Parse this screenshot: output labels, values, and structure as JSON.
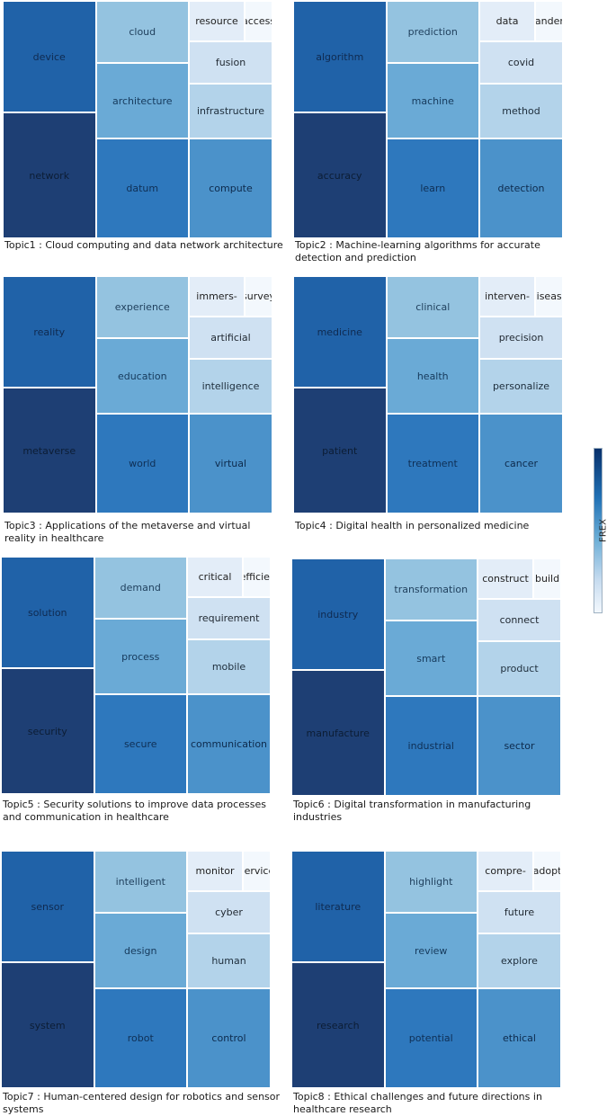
{
  "colorbar": {
    "label": "FREX",
    "colors": [
      "#08306b",
      "#2171b5",
      "#6baed6",
      "#c6dbef",
      "#f3f8fd"
    ]
  },
  "chart_data": [
    {
      "type": "treemap",
      "topic": "Topic1",
      "caption": "Topic1 : Cloud computing and data network architecture",
      "terms": [
        "network",
        "device",
        "datum",
        "compute",
        "architecture",
        "cloud",
        "infrastructure",
        "fusion",
        "resource",
        "access"
      ]
    },
    {
      "type": "treemap",
      "topic": "Topic2",
      "caption": "Topic2 : Machine-learning algorithms for accurate detection and prediction",
      "terms": [
        "accuracy",
        "algorithm",
        "learn",
        "detection",
        "machine",
        "prediction",
        "method",
        "covid",
        "data",
        "pandem"
      ]
    },
    {
      "type": "treemap",
      "topic": "Topic3",
      "caption": "Topic3 : Applications of the metaverse and virtual reality in healthcare",
      "terms": [
        "metaverse",
        "reality",
        "world",
        "virtual",
        "education",
        "experience",
        "intelligence",
        "artificial",
        "immers-",
        "survey"
      ]
    },
    {
      "type": "treemap",
      "topic": "Topic4",
      "caption": "Topic4 : Digital health in personalized medicine",
      "terms": [
        "patient",
        "medicine",
        "treatment",
        "cancer",
        "health",
        "clinical",
        "personalize",
        "precision",
        "interven-",
        "disease"
      ]
    },
    {
      "type": "treemap",
      "topic": "Topic5",
      "caption": "Topic5 : Security solutions to improve data processes and communication in healthcare",
      "terms": [
        "security",
        "solution",
        "secure",
        "communication",
        "process",
        "demand",
        "mobile",
        "requirement",
        "critical",
        "efficier"
      ]
    },
    {
      "type": "treemap",
      "topic": "Topic6",
      "caption": "Topic6 : Digital transformation in manufacturing industries",
      "terms": [
        "manufacture",
        "industry",
        "industrial",
        "sector",
        "smart",
        "transformation",
        "product",
        "connect",
        "construct",
        "build"
      ]
    },
    {
      "type": "treemap",
      "topic": "Topic7",
      "caption": "Topic7 : Human-centered design for robotics and sensor systems",
      "terms": [
        "system",
        "sensor",
        "robot",
        "control",
        "design",
        "intelligent",
        "human",
        "cyber",
        "monitor",
        "service"
      ]
    },
    {
      "type": "treemap",
      "topic": "Topic8",
      "caption": "Topic8 : Ethical challenges and future directions in healthcare research",
      "terms": [
        "research",
        "literature",
        "potential",
        "ethical",
        "review",
        "highlight",
        "explore",
        "future",
        "compre-",
        "adopt"
      ]
    }
  ]
}
